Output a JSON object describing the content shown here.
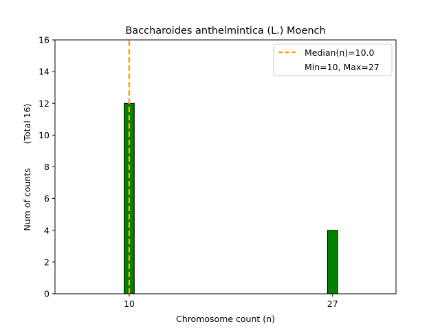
{
  "chart_data": {
    "type": "bar",
    "title": "Baccharoides anthelmintica (L.) Moench",
    "xlabel": "Chromosome count (n)",
    "ylabel": "Num of counts",
    "ylabel_note": "(Total 16)",
    "xlim": [
      3.8,
      32.3
    ],
    "ylim": [
      0,
      16
    ],
    "yticks": [
      0,
      2,
      4,
      6,
      8,
      10,
      12,
      14,
      16
    ],
    "xticks": [
      10,
      27
    ],
    "bar_width": 0.85,
    "bars": [
      {
        "x": 10,
        "value": 12
      },
      {
        "x": 27,
        "value": 4
      }
    ],
    "bar_color": "#008000",
    "baseline_end": 30.8,
    "median": {
      "value": 10.0,
      "color": "#FFA500"
    },
    "legend": {
      "position": "upper right",
      "entries": [
        "Median(n)=10.0",
        "Min=10, Max=27"
      ]
    },
    "grid": false
  }
}
